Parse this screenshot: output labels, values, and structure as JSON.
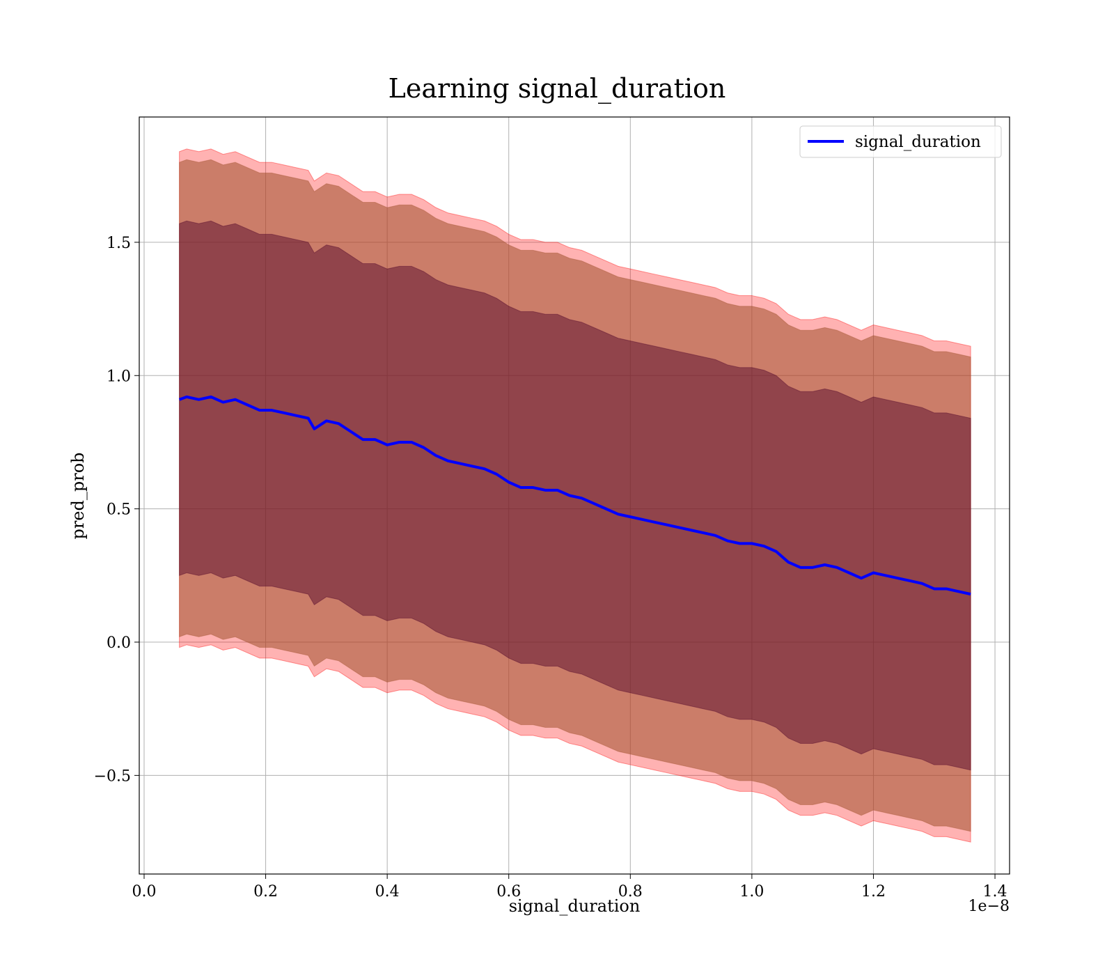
{
  "chart_data": {
    "type": "line",
    "title": "Learning signal_duration",
    "xlabel": "signal_duration",
    "ylabel": "pred_prob",
    "x_offset_label": "1e−8",
    "xlim": [
      -0.008,
      1.424
    ],
    "ylim": [
      -0.87,
      1.97
    ],
    "x_ticks": [
      0.0,
      0.2,
      0.4,
      0.6,
      0.8,
      1.0,
      1.2,
      1.4
    ],
    "x_tick_labels": [
      "0.0",
      "0.2",
      "0.4",
      "0.6",
      "0.8",
      "1.0",
      "1.2",
      "1.4"
    ],
    "y_ticks": [
      -0.5,
      0.0,
      0.5,
      1.0,
      1.5
    ],
    "y_tick_labels": [
      "−0.5",
      "0.0",
      "0.5",
      "1.0",
      "1.5"
    ],
    "grid": true,
    "legend_position": "top-right",
    "colors": {
      "line": "#0000ff",
      "band_outer": "#ff0000",
      "band_middle": "#a0522d",
      "band_inner": "#4b0028"
    },
    "series": [
      {
        "name": "signal_duration",
        "x": [
          0.058,
          0.07,
          0.09,
          0.11,
          0.13,
          0.15,
          0.17,
          0.19,
          0.21,
          0.23,
          0.25,
          0.27,
          0.28,
          0.3,
          0.32,
          0.34,
          0.36,
          0.38,
          0.4,
          0.42,
          0.44,
          0.46,
          0.48,
          0.5,
          0.52,
          0.54,
          0.56,
          0.58,
          0.6,
          0.62,
          0.64,
          0.66,
          0.68,
          0.7,
          0.72,
          0.74,
          0.76,
          0.78,
          0.8,
          0.82,
          0.84,
          0.86,
          0.88,
          0.9,
          0.92,
          0.94,
          0.96,
          0.98,
          1.0,
          1.02,
          1.04,
          1.06,
          1.08,
          1.1,
          1.12,
          1.14,
          1.16,
          1.18,
          1.2,
          1.22,
          1.24,
          1.26,
          1.28,
          1.3,
          1.32,
          1.34,
          1.36
        ],
        "y": [
          0.91,
          0.92,
          0.91,
          0.92,
          0.9,
          0.91,
          0.89,
          0.87,
          0.87,
          0.86,
          0.85,
          0.84,
          0.8,
          0.83,
          0.82,
          0.79,
          0.76,
          0.76,
          0.74,
          0.75,
          0.75,
          0.73,
          0.7,
          0.68,
          0.67,
          0.66,
          0.65,
          0.63,
          0.6,
          0.58,
          0.58,
          0.57,
          0.57,
          0.55,
          0.54,
          0.52,
          0.5,
          0.48,
          0.47,
          0.46,
          0.45,
          0.44,
          0.43,
          0.42,
          0.41,
          0.4,
          0.38,
          0.37,
          0.37,
          0.36,
          0.34,
          0.3,
          0.28,
          0.28,
          0.29,
          0.28,
          0.26,
          0.24,
          0.26,
          0.25,
          0.24,
          0.23,
          0.22,
          0.2,
          0.2,
          0.19,
          0.18
        ]
      }
    ],
    "bands": [
      {
        "level": "outer",
        "half_width": 0.93
      },
      {
        "level": "middle",
        "half_width": 0.89
      },
      {
        "level": "inner",
        "half_width": 0.66
      }
    ]
  }
}
